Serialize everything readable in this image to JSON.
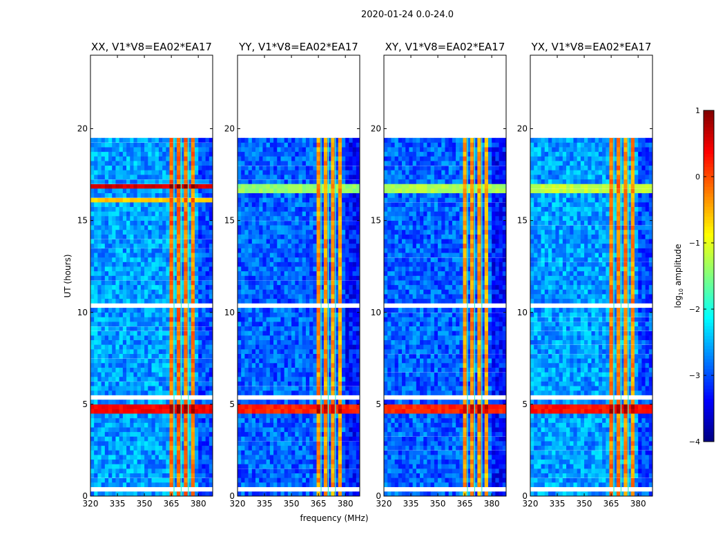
{
  "chart_data": {
    "type": "heatmap",
    "title": "2020-01-24 0.0-24.0",
    "xlabel": "frequency (MHz)",
    "ylabel": "UT (hours)",
    "xlim": [
      320,
      388
    ],
    "ylim": [
      0,
      24
    ],
    "xticks": [
      320,
      335,
      350,
      365,
      380
    ],
    "yticks": [
      0,
      5,
      10,
      15,
      20
    ],
    "colorbar": {
      "label": "log10 amplitude",
      "label_main": "log",
      "label_sub": "10",
      "label_rest": " amplitude",
      "range": [
        -4,
        1
      ],
      "ticks": [
        1,
        0,
        -1,
        -2,
        -3,
        -4
      ],
      "tick_labels": [
        "1",
        "0",
        "−1",
        "−2",
        "−3",
        "−4"
      ],
      "colormap": "jet"
    },
    "panels": [
      {
        "title": "XX, V1*V8=EA02*EA17",
        "background": -2.6,
        "strong_rows": [
          [
            4.5,
            4.9,
            0.4
          ],
          [
            16.7,
            17.0,
            0.6
          ],
          [
            16.0,
            16.3,
            -0.6
          ]
        ],
        "band_level": -0.4
      },
      {
        "title": "YY, V1*V8=EA02*EA17",
        "background": -2.9,
        "strong_rows": [
          [
            4.5,
            4.9,
            0.2
          ],
          [
            16.6,
            17.0,
            -1.4
          ]
        ],
        "band_level": -0.6
      },
      {
        "title": "XY, V1*V8=EA02*EA17",
        "background": -2.9,
        "strong_rows": [
          [
            4.5,
            4.9,
            0.2
          ],
          [
            16.5,
            17.0,
            -1.3
          ]
        ],
        "band_level": -0.6
      },
      {
        "title": "YX, V1*V8=EA02*EA17",
        "background": -2.6,
        "strong_rows": [
          [
            4.5,
            4.9,
            0.3
          ],
          [
            16.6,
            17.0,
            -1.2
          ]
        ],
        "band_level": -0.5
      }
    ],
    "data_end_hours": 19.5,
    "gaps_hours": [
      [
        0.3,
        0.6
      ],
      [
        5.2,
        5.6
      ],
      [
        10.2,
        10.5
      ]
    ],
    "rfi_channels_mhz": [
      [
        363,
        366.5,
        0.5
      ],
      [
        367,
        370.5,
        0.5
      ],
      [
        371,
        374.5,
        0.4
      ],
      [
        375,
        379,
        0.3
      ],
      [
        379,
        381,
        -0.3
      ]
    ],
    "channel_gaps_mhz": [
      366.5,
      370.5,
      374.5
    ],
    "row_step_hours": 0.25,
    "col_step_mhz": 2
  }
}
